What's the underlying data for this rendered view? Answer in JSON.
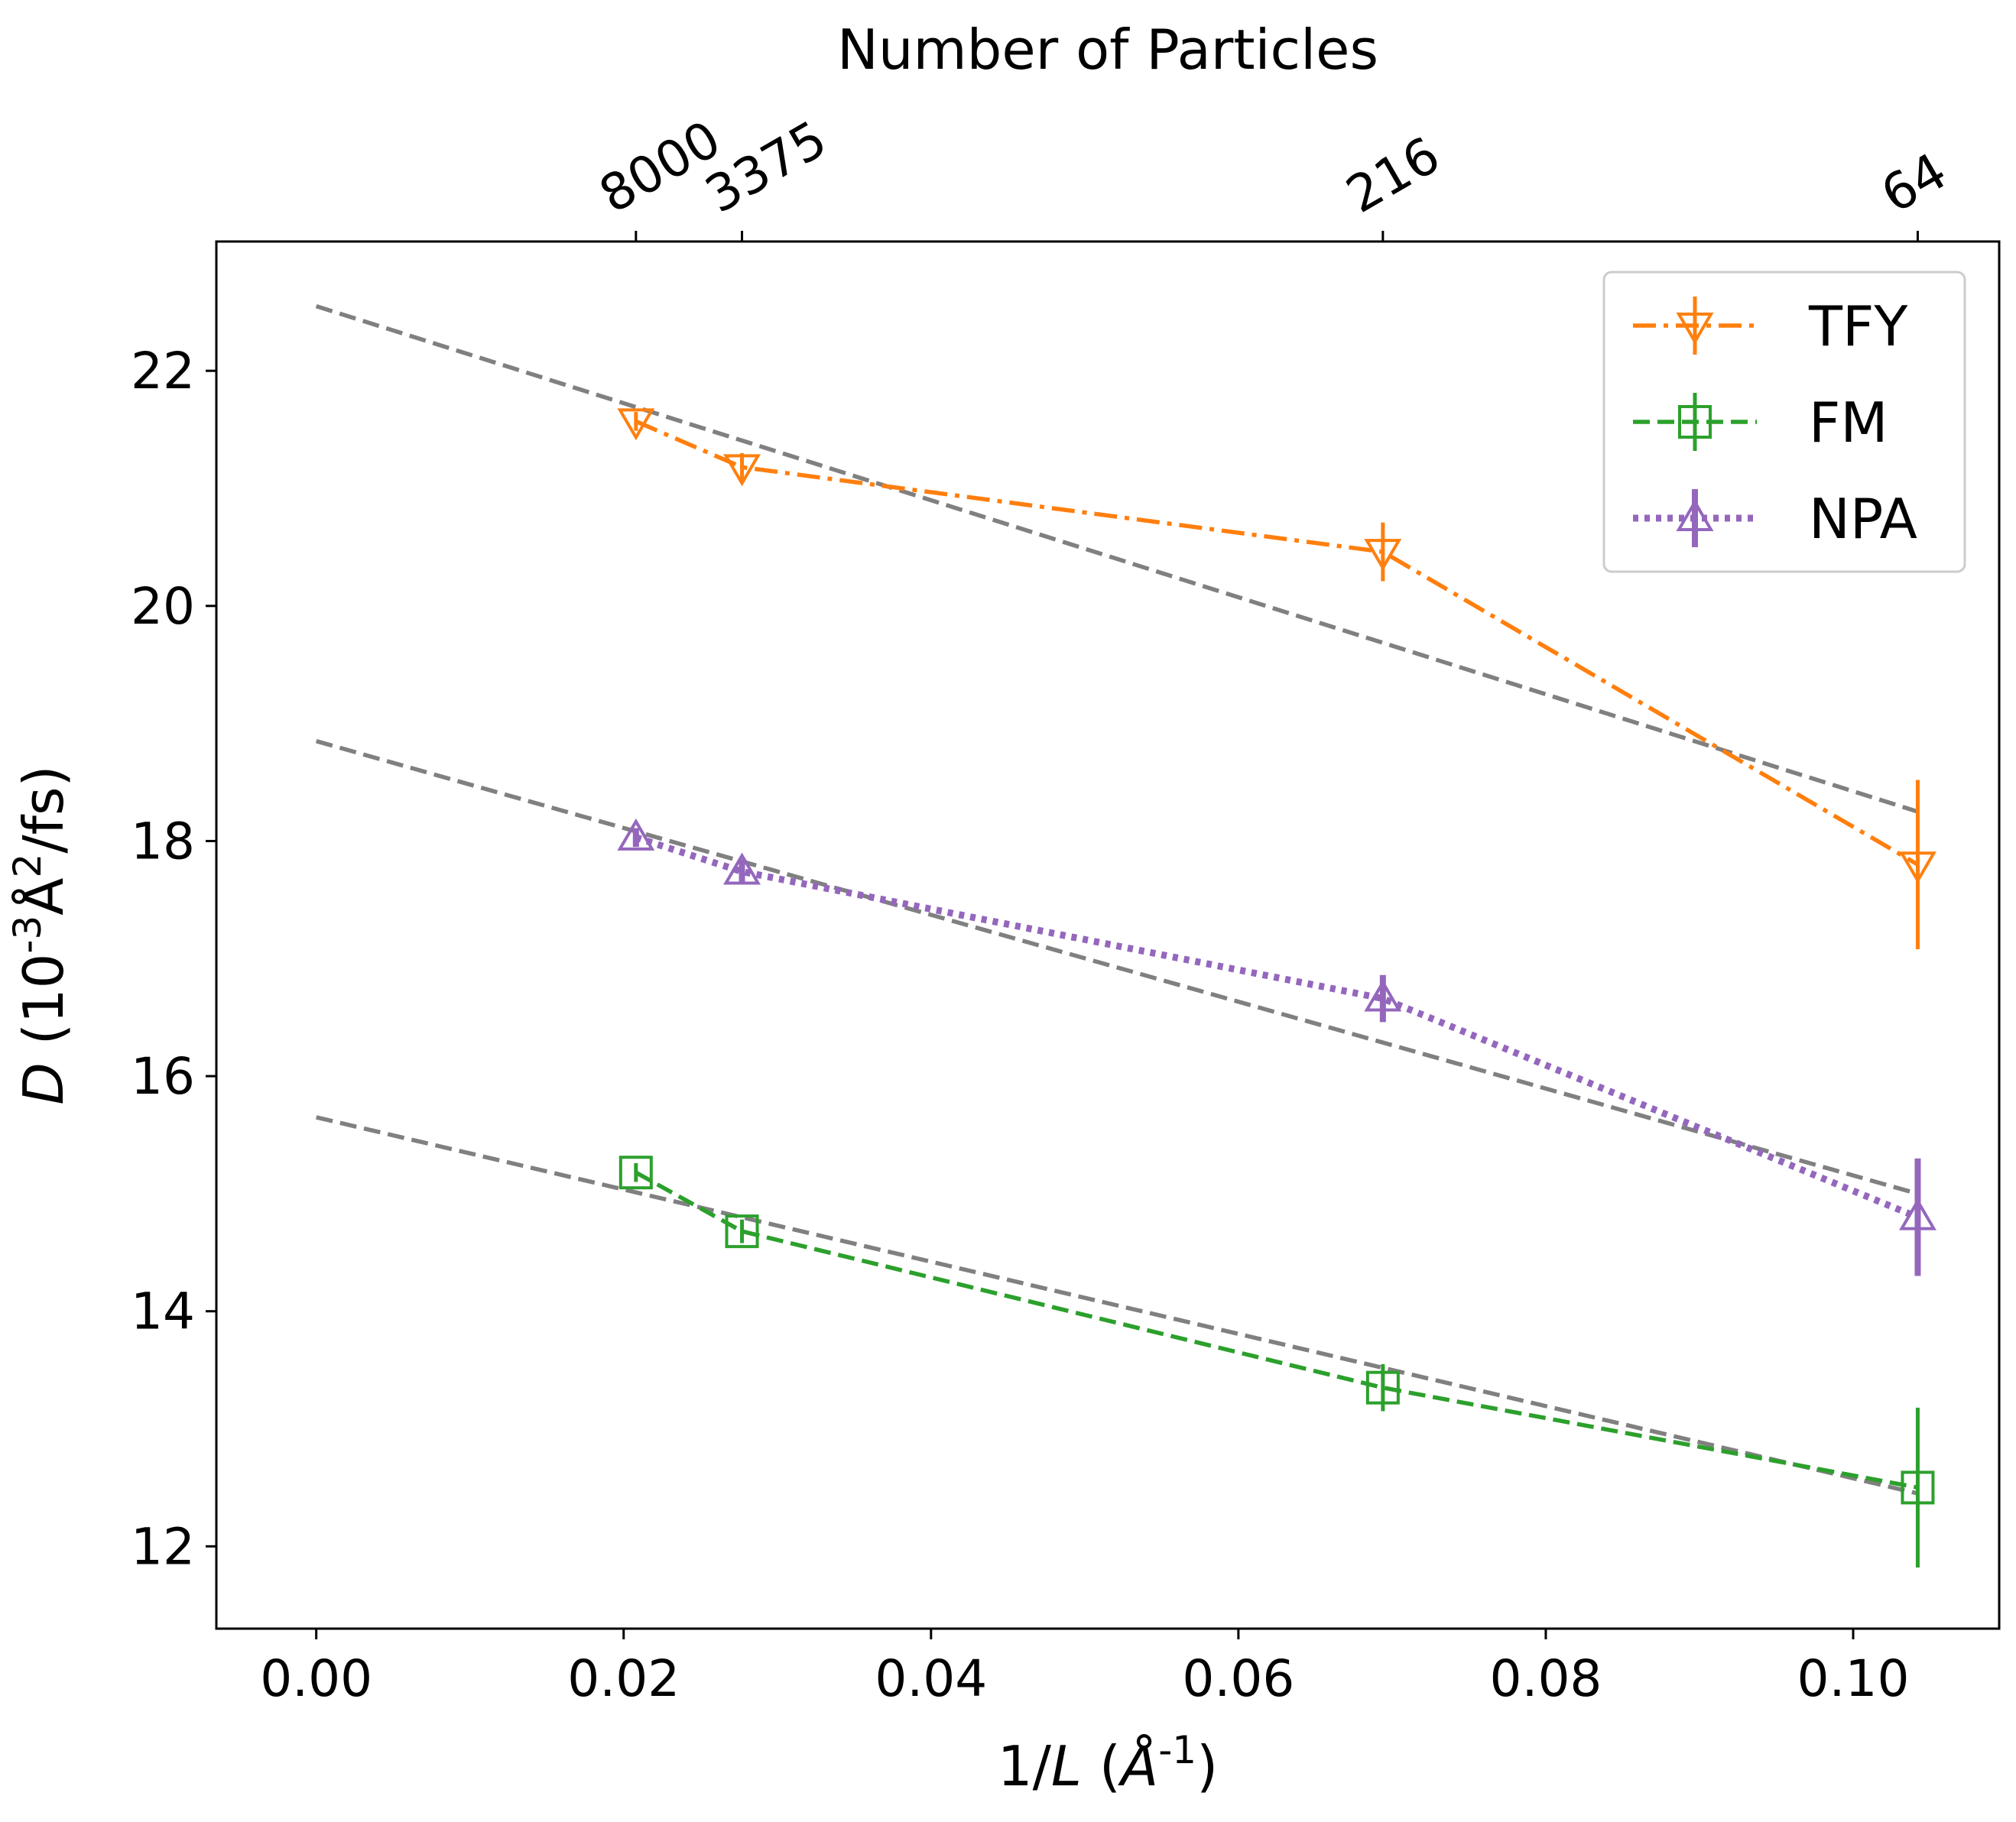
{
  "chart_data": {
    "type": "line",
    "title": "",
    "xlabel": "1/L (Å^{-1})",
    "ylabel": "D (10^{-3}Å^2/fs)",
    "top_xlabel": "Number of Particles",
    "xlim": [
      -0.0065,
      0.1095
    ],
    "ylim": [
      11.3,
      23.1
    ],
    "x_ticks": [
      0.0,
      0.02,
      0.04,
      0.06,
      0.08,
      0.1
    ],
    "x_tick_labels": [
      "0.00",
      "0.02",
      "0.04",
      "0.06",
      "0.08",
      "0.10"
    ],
    "y_ticks": [
      12,
      14,
      16,
      18,
      20,
      22
    ],
    "y_tick_labels": [
      "12",
      "14",
      "16",
      "18",
      "20",
      "22"
    ],
    "top_ticks": [
      0.0208,
      0.0277,
      0.0694,
      0.1042
    ],
    "top_tick_labels": [
      "8000",
      "3375",
      "216",
      "64"
    ],
    "x": [
      0.0208,
      0.0277,
      0.0694,
      0.1042
    ],
    "series": [
      {
        "name": "TFY",
        "color": "#ff7f0e",
        "values": [
          21.57,
          21.18,
          20.46,
          17.8
        ],
        "errors": [
          0.08,
          0.12,
          0.25,
          0.72
        ],
        "marker": "triangle-down",
        "linestyle": "dashdot"
      },
      {
        "name": "FM",
        "color": "#2ca02c",
        "values": [
          15.18,
          14.68,
          13.35,
          12.5
        ],
        "errors": [
          0.08,
          0.1,
          0.2,
          0.68
        ],
        "marker": "square",
        "linestyle": "dashed"
      },
      {
        "name": "NPA",
        "color": "#9467bd",
        "values": [
          18.03,
          17.74,
          16.66,
          14.8
        ],
        "errors": [
          0.08,
          0.1,
          0.2,
          0.5
        ],
        "marker": "triangle-up",
        "linestyle": "dotted"
      }
    ],
    "fit_lines": [
      {
        "series": "TFY",
        "x": [
          0.0,
          0.1042
        ],
        "values": [
          22.55,
          18.25
        ]
      },
      {
        "series": "NPA",
        "x": [
          0.0,
          0.1042
        ],
        "values": [
          18.85,
          15.0
        ]
      },
      {
        "series": "FM",
        "x": [
          0.0,
          0.1042
        ],
        "values": [
          15.65,
          12.45
        ]
      }
    ],
    "fit_color": "#808080",
    "legend_position": "top-right",
    "grid": false
  }
}
